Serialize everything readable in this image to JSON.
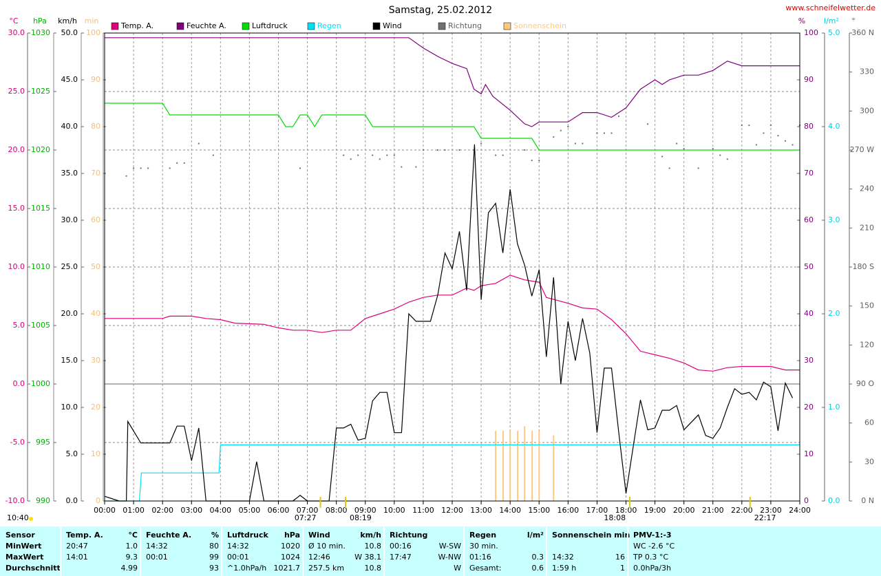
{
  "chart_data": {
    "type": "line",
    "title": "Samstag, 25.02.2012",
    "source": "www.schneifelwetter.de",
    "daylight": "10:40",
    "grid": true,
    "xlim": [
      0,
      24
    ],
    "xticks": [
      {
        "value": 0,
        "label": "00:00"
      },
      {
        "value": 1,
        "label": "01:00"
      },
      {
        "value": 2,
        "label": "02:00"
      },
      {
        "value": 3,
        "label": "03:00"
      },
      {
        "value": 4,
        "label": "04:00"
      },
      {
        "value": 5,
        "label": "05:00"
      },
      {
        "value": 6,
        "label": "06:00"
      },
      {
        "value": 7,
        "label": "07:00"
      },
      {
        "value": 8,
        "label": "08:00"
      },
      {
        "value": 9,
        "label": "09:00"
      },
      {
        "value": 10,
        "label": "10:00"
      },
      {
        "value": 11,
        "label": "11:00"
      },
      {
        "value": 12,
        "label": "12:00"
      },
      {
        "value": 13,
        "label": "13:00"
      },
      {
        "value": 14,
        "label": "14:00"
      },
      {
        "value": 15,
        "label": "15:00"
      },
      {
        "value": 16,
        "label": "16:00"
      },
      {
        "value": 17,
        "label": "17:00"
      },
      {
        "value": 18,
        "label": "18:00"
      },
      {
        "value": 19,
        "label": "19:00"
      },
      {
        "value": 20,
        "label": "20:00"
      },
      {
        "value": 21,
        "label": "21:00"
      },
      {
        "value": 22,
        "label": "22:00"
      },
      {
        "value": 23,
        "label": "23:00"
      },
      {
        "value": 24,
        "label": "24:00"
      }
    ],
    "axes": [
      {
        "unit": "°C",
        "color": "#d4007a",
        "lim": [
          -10,
          30
        ],
        "ticks": [
          {
            "value": -10,
            "label": "-10.0"
          },
          {
            "value": -5,
            "label": "-5.0"
          },
          {
            "value": 0,
            "label": "0.0"
          },
          {
            "value": 5,
            "label": "5.0"
          },
          {
            "value": 10,
            "label": "10.0"
          },
          {
            "value": 15,
            "label": "15.0"
          },
          {
            "value": 20,
            "label": "20.0"
          },
          {
            "value": 25,
            "label": "25.0"
          },
          {
            "value": 30,
            "label": "30.0"
          }
        ]
      },
      {
        "unit": "hPa",
        "color": "#00b000",
        "lim": [
          990,
          1030
        ],
        "ticks": [
          990,
          995,
          1000,
          1005,
          1010,
          1015,
          1020,
          1025,
          1030
        ]
      },
      {
        "unit": "km/h",
        "color": "#000000",
        "lim": [
          0,
          50
        ],
        "ticks": [
          {
            "value": 0,
            "label": "0.0"
          },
          {
            "value": 5,
            "label": "5.0"
          },
          {
            "value": 10,
            "label": "10.0"
          },
          {
            "value": 15,
            "label": "15.0"
          },
          {
            "value": 20,
            "label": "20.0"
          },
          {
            "value": 25,
            "label": "25.0"
          },
          {
            "value": 30,
            "label": "30.0"
          },
          {
            "value": 35,
            "label": "35.0"
          },
          {
            "value": 40,
            "label": "40.0"
          },
          {
            "value": 45,
            "label": "45.0"
          },
          {
            "value": 50,
            "label": "50.0"
          }
        ]
      },
      {
        "unit": "min",
        "color": "#f0c080",
        "lim": [
          0,
          100
        ],
        "ticks": [
          0,
          10,
          20,
          30,
          40,
          50,
          60,
          70,
          80,
          90,
          100
        ]
      },
      {
        "unit": "%",
        "color": "#800080",
        "lim": [
          0,
          100
        ],
        "ticks": [
          0,
          10,
          20,
          30,
          40,
          50,
          60,
          70,
          80,
          90,
          100
        ]
      },
      {
        "unit": "l/m²",
        "color": "#00d0e0",
        "lim": [
          0,
          5
        ],
        "ticks": [
          {
            "value": 0,
            "label": "0.0"
          },
          {
            "value": 1,
            "label": "1.0"
          },
          {
            "value": 2,
            "label": "2.0"
          },
          {
            "value": 3,
            "label": "3.0"
          },
          {
            "value": 4,
            "label": "4.0"
          },
          {
            "value": 5,
            "label": "5.0"
          }
        ]
      },
      {
        "unit": "°",
        "color": "#606060",
        "lim": [
          0,
          360
        ],
        "ticks": [
          {
            "value": 0,
            "label": "0 N"
          },
          30,
          60,
          {
            "value": 90,
            "label": "90 O"
          },
          120,
          150,
          {
            "value": 180,
            "label": "180 S"
          },
          210,
          240,
          {
            "value": 270,
            "label": "270 W"
          },
          300,
          330,
          {
            "value": 360,
            "label": "360 N"
          }
        ]
      }
    ],
    "series": [
      {
        "name": "Temp. A.",
        "color": "#e0007a",
        "label_color": "#000000",
        "axis": 0,
        "kind": "line",
        "x": [
          0,
          2,
          2.25,
          3,
          3.5,
          4,
          4.5,
          5.5,
          6,
          6.5,
          7,
          7.5,
          8,
          8.5,
          9,
          9.5,
          10,
          10.5,
          11,
          11.5,
          12,
          12.5,
          12.75,
          13,
          13.5,
          14,
          14.5,
          15,
          15.25,
          16,
          16.5,
          17,
          17.5,
          18,
          18.5,
          19,
          19.5,
          20,
          20.5,
          21,
          21.5,
          22,
          23,
          23.5,
          24
        ],
        "values": [
          5.6,
          5.6,
          5.8,
          5.8,
          5.6,
          5.5,
          5.2,
          5.1,
          4.8,
          4.6,
          4.6,
          4.4,
          4.6,
          4.6,
          5.6,
          6.0,
          6.4,
          7.0,
          7.4,
          7.6,
          7.6,
          8.2,
          8.0,
          8.4,
          8.6,
          9.3,
          8.9,
          8.7,
          7.4,
          6.9,
          6.5,
          6.4,
          5.5,
          4.3,
          2.8,
          2.5,
          2.2,
          1.8,
          1.2,
          1.1,
          1.4,
          1.5,
          1.5,
          1.2,
          1.2
        ]
      },
      {
        "name": "Feuchte A.",
        "color": "#800080",
        "label_color": "#000000",
        "axis": 4,
        "kind": "line",
        "x": [
          0,
          10.5,
          11,
          11.5,
          12,
          12.5,
          12.75,
          13,
          13.15,
          13.4,
          14,
          14.5,
          14.75,
          15,
          16,
          16.5,
          17,
          17.5,
          18,
          18.5,
          19,
          19.25,
          19.5,
          20,
          20.5,
          21,
          21.5,
          22,
          24
        ],
        "values": [
          99,
          99,
          96.8,
          95,
          93.5,
          92.4,
          88,
          87,
          89,
          86.5,
          83.5,
          80.6,
          80,
          81,
          81,
          83,
          83,
          82,
          84,
          88,
          90,
          89,
          90,
          91,
          91,
          92,
          94,
          93,
          93
        ]
      },
      {
        "name": "Luftdruck",
        "color": "#00e000",
        "label_color": "#000000",
        "axis": 1,
        "kind": "line",
        "x": [
          0,
          2,
          2.25,
          6,
          6.25,
          6.5,
          6.75,
          7,
          7.25,
          7.5,
          9,
          9.25,
          12.75,
          13,
          14.75,
          15,
          24
        ],
        "values": [
          1024,
          1024,
          1023,
          1023,
          1022,
          1022,
          1023,
          1023,
          1022,
          1023,
          1023,
          1022,
          1022,
          1021,
          1021,
          1020,
          1020
        ]
      },
      {
        "name": "Regen",
        "color": "#00e0f0",
        "label_color": "#00e0f0",
        "axis": 5,
        "kind": "line",
        "x": [
          0,
          1.2,
          1.27,
          3.95,
          4,
          24
        ],
        "values": [
          0,
          0,
          0.3,
          0.3,
          0.6,
          0.6
        ]
      },
      {
        "name": "Wind",
        "color": "#000000",
        "label_color": "#000000",
        "axis": 2,
        "kind": "line",
        "x": [
          0,
          0.5,
          0.75,
          0.8,
          1.25,
          2.25,
          2.5,
          2.75,
          3,
          3.25,
          3.5,
          5,
          5.25,
          5.5,
          6.5,
          6.75,
          7,
          7.75,
          8,
          8.25,
          8.5,
          8.75,
          9,
          9.25,
          9.5,
          9.75,
          10,
          10.25,
          10.5,
          10.75,
          11.25,
          11.5,
          11.75,
          12,
          12.25,
          12.5,
          12.77,
          13,
          13.25,
          13.5,
          13.75,
          14,
          14.25,
          14.5,
          14.75,
          15,
          15.25,
          15.5,
          15.75,
          16,
          16.25,
          16.5,
          16.75,
          17,
          17.25,
          17.5,
          17.75,
          18,
          18.5,
          18.75,
          19,
          19.25,
          19.5,
          19.75,
          20,
          20.5,
          20.75,
          21,
          21.25,
          21.5,
          21.75,
          22,
          22.25,
          22.5,
          22.75,
          23,
          23.25,
          23.5,
          23.75
        ],
        "values": [
          0.5,
          0,
          0,
          8.5,
          6.2,
          6.2,
          8,
          8,
          4.3,
          7.8,
          0,
          0,
          4.2,
          0,
          0,
          0.6,
          0,
          0,
          7.8,
          7.8,
          8.2,
          6.5,
          6.7,
          10.7,
          11.6,
          11.6,
          7.3,
          7.3,
          20,
          19.2,
          19.2,
          22,
          26.5,
          24.8,
          28.8,
          22.5,
          38.1,
          21.5,
          30.8,
          31.8,
          26.5,
          33.3,
          27.5,
          25.2,
          21.9,
          24.7,
          15.4,
          23.9,
          12.5,
          19.2,
          15,
          19.5,
          15.8,
          7.3,
          14.2,
          14.2,
          7.3,
          0.8,
          10.8,
          7.6,
          7.8,
          9.7,
          9.7,
          10.2,
          7.6,
          9.2,
          7.0,
          6.7,
          7.8,
          10,
          12,
          11.4,
          11.6,
          10.8,
          12.7,
          12.2,
          7.5,
          12.6,
          11
        ]
      },
      {
        "name": "Richtung",
        "color": "#707070",
        "label_color": "#606060",
        "axis": 6,
        "kind": "dots",
        "x": [
          0.75,
          1,
          1.25,
          1.5,
          2.25,
          2.5,
          2.75,
          3.25,
          3.75,
          6.75,
          8.25,
          8.5,
          8.75,
          9.25,
          9.5,
          9.75,
          10,
          10.25,
          10.75,
          11,
          11.5,
          11.75,
          12.25,
          12.75,
          13,
          13.5,
          13.75,
          14.5,
          14.75,
          15,
          15.5,
          15.75,
          16,
          16.25,
          16.5,
          17,
          17.25,
          17.5,
          17.75,
          18.75,
          19.25,
          19.5,
          19.75,
          20,
          20.5,
          21,
          21.25,
          21.5,
          22,
          22.25,
          22.5,
          22.75,
          23,
          23.25,
          23.5,
          23.75,
          24
        ],
        "values": [
          250,
          256,
          256,
          256,
          256,
          260,
          260,
          275,
          266,
          256,
          266,
          263,
          266,
          266,
          263,
          266,
          266,
          257,
          257,
          270,
          270,
          270,
          270,
          270,
          275,
          266,
          266,
          270,
          262,
          262,
          280,
          285,
          288,
          275,
          275,
          283,
          283,
          283,
          296,
          290,
          265,
          256,
          275,
          271,
          256,
          271,
          266,
          263,
          289,
          289,
          274,
          283,
          289,
          281,
          277,
          274,
          289
        ]
      },
      {
        "name": "Sonnenschein",
        "color": "#ffc880",
        "label_color": "#ffc880",
        "axis": 3,
        "kind": "bars",
        "x": [
          13.5,
          13.76,
          14,
          14.26,
          14.5,
          14.76,
          15,
          15.5
        ],
        "values": [
          15,
          15,
          15,
          15,
          16,
          15,
          15,
          14
        ]
      }
    ],
    "annotations": [
      {
        "x": 7.45,
        "label": "07:27",
        "side": "left"
      },
      {
        "x": 8.317,
        "label": "08:19",
        "side": "right"
      },
      {
        "x": 18.133,
        "label": "18:08",
        "side": "left"
      },
      {
        "x": 22.283,
        "label": "22:17",
        "side": "right"
      }
    ]
  },
  "table": {
    "columns": [
      {
        "header": [
          "Sensor"
        ],
        "rows": [
          [
            "MinWert"
          ],
          [
            "MaxWert"
          ],
          [
            "Durchschnitt"
          ]
        ]
      },
      {
        "header": [
          "Temp. A.",
          "°C"
        ],
        "rows": [
          [
            "20:47",
            "1.0"
          ],
          [
            "14:01",
            "9.3"
          ],
          [
            null,
            "4.99"
          ]
        ]
      },
      {
        "header": [
          "Feuchte A.",
          "%"
        ],
        "rows": [
          [
            "14:32",
            "80"
          ],
          [
            "00:01",
            "99"
          ],
          [
            null,
            "93"
          ]
        ]
      },
      {
        "header": [
          "Luftdruck",
          "hPa"
        ],
        "rows": [
          [
            "14:32",
            "1020"
          ],
          [
            "00:01",
            "1024"
          ],
          [
            "^1.0hPa/h",
            "1021.7"
          ]
        ]
      },
      {
        "header": [
          "Wind",
          "km/h"
        ],
        "rows": [
          [
            "Ø 10 min.",
            "10.8"
          ],
          [
            "12:46",
            "W 38.1"
          ],
          [
            "257.5 km",
            "10.8"
          ]
        ]
      },
      {
        "header": [
          "Richtung"
        ],
        "rows": [
          [
            "00:16",
            "W-SW"
          ],
          [
            "17:47",
            "W-NW"
          ],
          [
            null,
            "W"
          ]
        ]
      },
      {
        "header": [
          "Regen",
          "l/m²"
        ],
        "rows": [
          [
            "30 min."
          ],
          [
            "01:16",
            "0.3"
          ],
          [
            "Gesamt:",
            "0.6"
          ]
        ]
      },
      {
        "header": [
          "Sonnenschein min"
        ],
        "rows": [
          [],
          [
            "14:32",
            "16"
          ],
          [
            "1:59 h",
            "1"
          ]
        ]
      },
      {
        "header": [
          "PMV-1:-3"
        ],
        "rows": [
          [
            "WC -2.6 °C"
          ],
          [
            "TP 0.3 °C"
          ],
          [
            "0.0hPa/3h"
          ]
        ]
      }
    ]
  }
}
